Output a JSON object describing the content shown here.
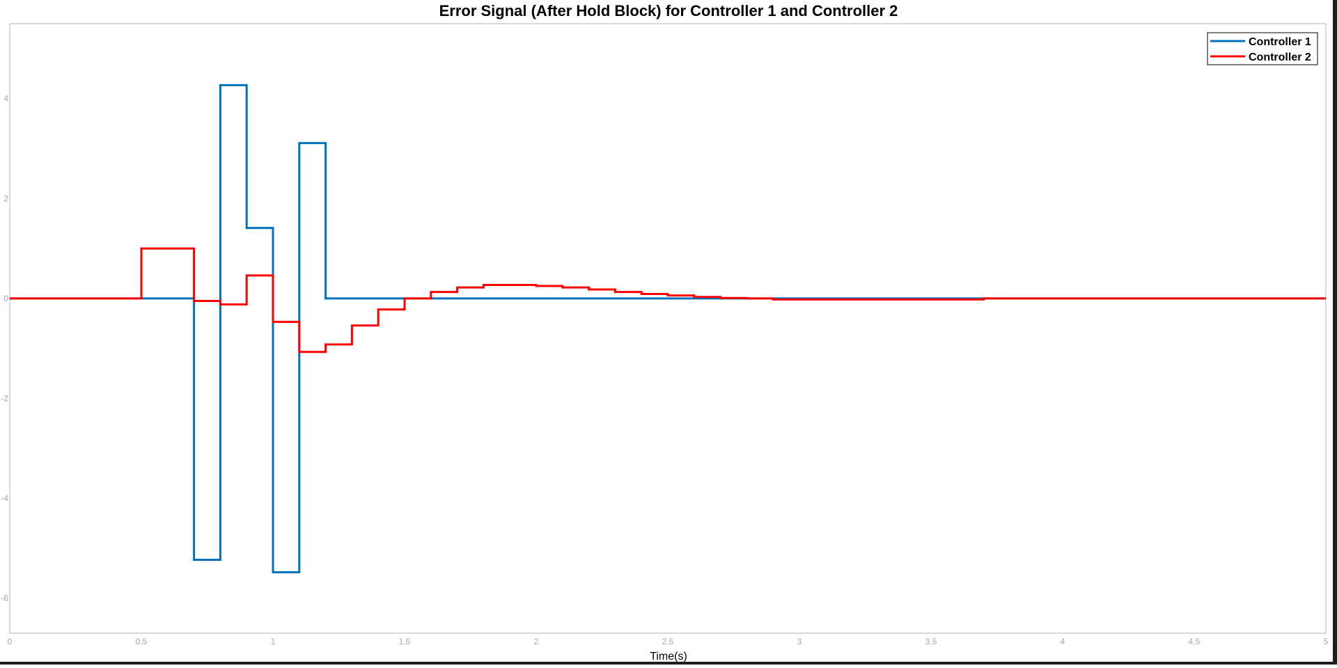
{
  "colors": {
    "background": "#ffffff",
    "grid": "#dcdcdc",
    "axis": "#b4b4b4",
    "tick_label": "#a6a6a6",
    "text": "#000000",
    "controller1": "#0072bd",
    "controller2": "#ff0000"
  },
  "chart_data": {
    "type": "line",
    "title": "Error Signal (After Hold Block) for Controller 1 and Controller 2",
    "xlabel": "Time(s)",
    "ylabel": "",
    "xlim": [
      0,
      5
    ],
    "ylim": [
      -6.7,
      5.5
    ],
    "grid": true,
    "legend_position": "top-right",
    "step": true,
    "x_ticks": [
      0,
      0.5,
      1,
      1.5,
      2,
      2.5,
      3,
      3.5,
      4,
      4.5,
      5
    ],
    "x_tick_labels": [
      "0",
      "0.5",
      "1",
      "1.5",
      "2",
      "2.5",
      "3",
      "3.5",
      "4",
      "4.5",
      "5"
    ],
    "y_ticks": [
      -6,
      -4,
      -2,
      0,
      2,
      4
    ],
    "y_tick_labels": [
      "-6",
      "-4",
      "-2",
      "0",
      "2",
      "4"
    ],
    "series": [
      {
        "name": "Controller 1",
        "color": "#0072bd",
        "x": [
          0,
          0.7,
          0.8,
          0.9,
          1.0,
          1.1,
          1.2,
          5
        ],
        "y": [
          0,
          -5.23,
          4.27,
          1.41,
          -5.48,
          3.11,
          0,
          0
        ]
      },
      {
        "name": "Controller 2",
        "color": "#ff0000",
        "x": [
          0,
          0.5,
          0.7,
          0.8,
          0.9,
          1.0,
          1.1,
          1.2,
          1.3,
          1.4,
          1.5,
          1.6,
          1.7,
          1.8,
          1.9,
          2.0,
          2.1,
          2.2,
          2.3,
          2.4,
          2.5,
          2.6,
          2.7,
          2.8,
          2.9,
          3.7,
          5
        ],
        "y": [
          0,
          1.0,
          -0.05,
          -0.12,
          0.46,
          -0.47,
          -1.07,
          -0.92,
          -0.54,
          -0.22,
          0,
          0.13,
          0.22,
          0.27,
          0.27,
          0.25,
          0.22,
          0.18,
          0.13,
          0.09,
          0.06,
          0.03,
          0.01,
          0,
          -0.02,
          0,
          0
        ]
      }
    ]
  }
}
